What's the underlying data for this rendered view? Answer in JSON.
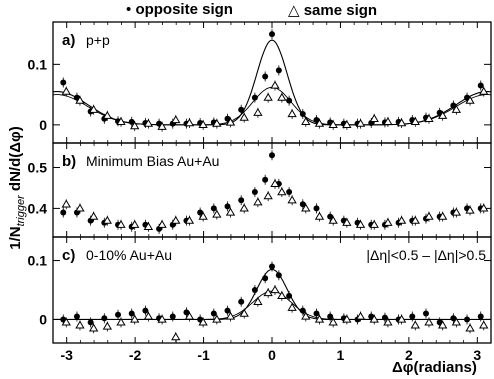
{
  "legend": [
    {
      "symbol": "•",
      "label": "opposite sign"
    },
    {
      "symbol": "△",
      "label": "same sign"
    }
  ],
  "ylabel_main": "1/N",
  "ylabel_sub": "trigger",
  "ylabel_rest": " dN/d(Δφ)",
  "xlabel": "Δφ(radians)",
  "x_ticks": [
    "-3",
    "-2",
    "-1",
    "0",
    "1",
    "2",
    "3"
  ],
  "chart_data": [
    {
      "type": "scatter",
      "panel_label": "a)",
      "panel_text": "p+p",
      "xlim": [
        -3.2,
        3.2
      ],
      "ylim": [
        -0.03,
        0.17
      ],
      "y_ticks": [
        "0",
        "0.1"
      ],
      "x": [
        -3.05,
        -2.85,
        -2.65,
        -2.45,
        -2.25,
        -2.05,
        -1.85,
        -1.65,
        -1.45,
        -1.25,
        -1.05,
        -0.85,
        -0.65,
        -0.45,
        -0.25,
        -0.1,
        0.0,
        0.1,
        0.25,
        0.45,
        0.65,
        0.85,
        1.05,
        1.25,
        1.45,
        1.65,
        1.85,
        2.05,
        2.25,
        2.45,
        2.65,
        2.85,
        3.05
      ],
      "series": [
        {
          "name": "opposite sign",
          "marker": "filled-circle",
          "values": [
            0.07,
            0.045,
            0.022,
            0.01,
            0.006,
            0.005,
            0.003,
            0.002,
            0.002,
            0.002,
            0.003,
            0.004,
            0.01,
            0.025,
            0.045,
            0.08,
            0.15,
            0.09,
            0.04,
            0.018,
            0.008,
            0.004,
            0.002,
            0.002,
            0.003,
            0.004,
            0.005,
            0.008,
            0.012,
            0.02,
            0.032,
            0.045,
            0.065
          ]
        },
        {
          "name": "same sign",
          "marker": "open-triangle",
          "values": [
            0.055,
            0.04,
            0.025,
            0.015,
            0.005,
            -0.002,
            0.002,
            -0.003,
            0.008,
            0.003,
            0.0,
            0.002,
            0.004,
            0.012,
            0.02,
            0.045,
            0.065,
            0.045,
            0.018,
            0.005,
            0.002,
            0.0,
            0.0,
            0.002,
            0.01,
            0.005,
            0.003,
            0.005,
            0.01,
            0.015,
            0.025,
            0.04,
            0.055
          ]
        }
      ]
    },
    {
      "type": "scatter",
      "panel_label": "b)",
      "panel_text": "Minimum Bias Au+Au",
      "xlim": [
        -3.2,
        3.2
      ],
      "ylim": [
        0.33,
        0.56
      ],
      "y_ticks": [
        "0.4",
        "0.5"
      ],
      "x": [
        -3.05,
        -2.85,
        -2.65,
        -2.45,
        -2.25,
        -2.05,
        -1.85,
        -1.65,
        -1.45,
        -1.25,
        -1.05,
        -0.85,
        -0.65,
        -0.45,
        -0.25,
        -0.1,
        0.0,
        0.1,
        0.25,
        0.45,
        0.65,
        0.85,
        1.05,
        1.25,
        1.45,
        1.65,
        1.85,
        2.05,
        2.25,
        2.45,
        2.65,
        2.85,
        3.05
      ],
      "series": [
        {
          "name": "opposite sign",
          "marker": "filled-circle",
          "values": [
            0.39,
            0.39,
            0.37,
            0.365,
            0.36,
            0.355,
            0.36,
            0.35,
            0.36,
            0.37,
            0.39,
            0.4,
            0.405,
            0.42,
            0.44,
            0.47,
            0.53,
            0.46,
            0.44,
            0.41,
            0.4,
            0.38,
            0.37,
            0.365,
            0.36,
            0.36,
            0.365,
            0.37,
            0.375,
            0.38,
            0.39,
            0.4,
            0.4
          ]
        },
        {
          "name": "same sign",
          "marker": "open-triangle",
          "values": [
            0.41,
            0.4,
            0.38,
            0.37,
            0.36,
            0.36,
            0.355,
            0.36,
            0.37,
            0.37,
            0.38,
            0.385,
            0.39,
            0.4,
            0.415,
            0.43,
            0.46,
            0.44,
            0.42,
            0.4,
            0.38,
            0.37,
            0.365,
            0.36,
            0.36,
            0.365,
            0.37,
            0.37,
            0.38,
            0.38,
            0.39,
            0.395,
            0.4
          ]
        }
      ]
    },
    {
      "type": "scatter",
      "panel_label": "c)",
      "panel_text": "0-10% Au+Au",
      "annotation": "|Δη|<0.5 – |Δη|>0.5",
      "xlim": [
        -3.2,
        3.2
      ],
      "ylim": [
        -0.04,
        0.14
      ],
      "y_ticks": [
        "0",
        "0.1"
      ],
      "x": [
        -3.05,
        -2.85,
        -2.65,
        -2.45,
        -2.25,
        -2.05,
        -1.85,
        -1.65,
        -1.45,
        -1.25,
        -1.05,
        -0.85,
        -0.65,
        -0.45,
        -0.25,
        -0.1,
        0.0,
        0.1,
        0.25,
        0.45,
        0.65,
        0.85,
        1.05,
        1.25,
        1.45,
        1.65,
        1.85,
        2.05,
        2.25,
        2.45,
        2.65,
        2.85,
        3.05
      ],
      "series": [
        {
          "name": "opposite sign",
          "marker": "filled-circle",
          "values": [
            0.0,
            0.005,
            -0.005,
            0.002,
            0.008,
            0.01,
            0.015,
            0.002,
            0.005,
            0.012,
            0.0,
            0.01,
            0.015,
            0.03,
            0.05,
            0.07,
            0.09,
            0.075,
            0.04,
            0.015,
            0.01,
            0.005,
            0.002,
            0.0,
            0.005,
            0.003,
            0.0,
            0.005,
            0.01,
            -0.005,
            0.002,
            0.0,
            0.005
          ]
        },
        {
          "name": "same sign",
          "marker": "open-triangle",
          "values": [
            -0.005,
            -0.01,
            -0.015,
            -0.012,
            -0.005,
            0.0,
            0.005,
            0.0,
            -0.03,
            0.005,
            -0.005,
            0.0,
            0.005,
            0.01,
            0.03,
            0.045,
            0.05,
            0.04,
            0.02,
            0.005,
            0.0,
            -0.005,
            0.0,
            0.005,
            0.0,
            -0.005,
            0.0,
            -0.01,
            -0.005,
            -0.01,
            -0.005,
            -0.015,
            -0.01
          ]
        }
      ]
    }
  ]
}
